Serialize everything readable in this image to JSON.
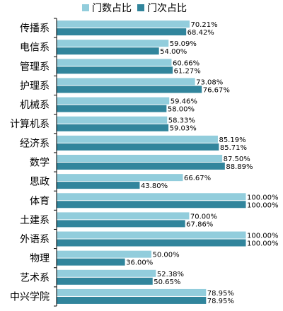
{
  "chart_data": {
    "type": "bar",
    "orientation": "horizontal",
    "categories": [
      "传播系",
      "电信系",
      "管理系",
      "护理系",
      "机械系",
      "计算机系",
      "经济系",
      "数学",
      "思政",
      "体育",
      "土建系",
      "外语系",
      "物理",
      "艺术系",
      "中兴学院"
    ],
    "series": [
      {
        "name": "门数占比",
        "color": "#92CDDC",
        "values": [
          70.21,
          59.09,
          60.66,
          73.08,
          59.46,
          58.33,
          85.19,
          87.5,
          66.67,
          100.0,
          70.0,
          100.0,
          50.0,
          52.38,
          78.95
        ],
        "labels": [
          "70.21%",
          "59.09%",
          "60.66%",
          "73.08%",
          "59.46%",
          "58.33%",
          "85.19%",
          "87.50%",
          "66.67%",
          "100.00%",
          "70.00%",
          "100.00%",
          "50.00%",
          "52.38%",
          "78.95%"
        ]
      },
      {
        "name": "门次占比",
        "color": "#31859C",
        "values": [
          68.42,
          54.0,
          61.27,
          76.67,
          58.0,
          59.03,
          85.71,
          88.89,
          43.8,
          100.0,
          67.86,
          100.0,
          36.0,
          50.65,
          78.95
        ],
        "labels": [
          "68.42%",
          "54.00%",
          "61.27%",
          "76.67%",
          "58.00%",
          "59.03%",
          "85.71%",
          "88.89%",
          "43.80%",
          "100.00%",
          "67.86%",
          "100.00%",
          "36.00%",
          "50.65%",
          "78.95%"
        ]
      }
    ],
    "xlim": [
      0,
      100
    ],
    "grid": false,
    "legend_position": "top"
  }
}
